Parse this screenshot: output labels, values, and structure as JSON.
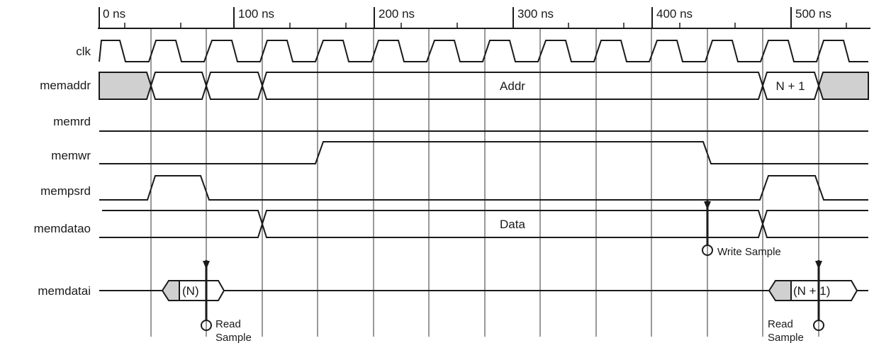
{
  "timeline": {
    "tick_labels": [
      "0 ns",
      "100 ns",
      "200 ns",
      "300 ns",
      "400 ns",
      "500 ns"
    ]
  },
  "signals": [
    {
      "id": "clk",
      "label": "clk"
    },
    {
      "id": "memaddr",
      "label": "memaddr"
    },
    {
      "id": "memrd",
      "label": "memrd"
    },
    {
      "id": "memwr",
      "label": "memwr"
    },
    {
      "id": "mempsrd",
      "label": "mempsrd"
    },
    {
      "id": "memdatao",
      "label": "memdatao"
    },
    {
      "id": "memdatai",
      "label": "memdatai"
    }
  ],
  "bus_values": {
    "memaddr_main": "Addr",
    "memaddr_next": "N + 1",
    "memdatao_main": "Data",
    "memdatai_first": "(N)",
    "memdatai_second": "(N + 1)"
  },
  "annotations": {
    "write_sample": "Write Sample",
    "read_sample_1_line1": "Read",
    "read_sample_1_line2": "Sample",
    "read_sample_2_line1": "Read",
    "read_sample_2_line2": "Sample"
  },
  "colors": {
    "line": "#1a1a1a",
    "grid": "#333333",
    "undefined_fill": "#d0d0d0"
  }
}
